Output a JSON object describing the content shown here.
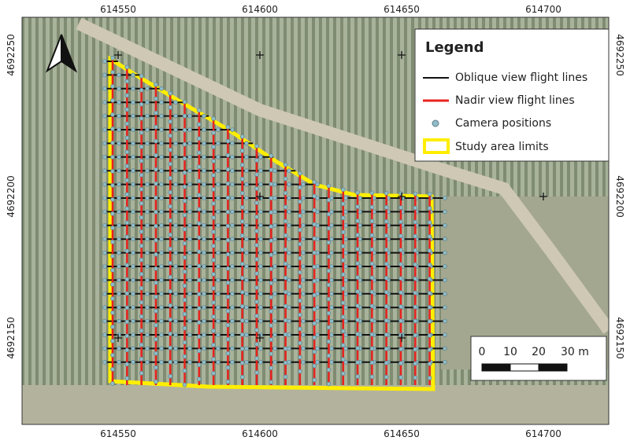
{
  "frame": {
    "top_labels": [
      614550,
      614600,
      614650,
      614700
    ],
    "bottom_labels": [
      614550,
      614600,
      614650,
      614700
    ],
    "left_labels": [
      4692250,
      4692200,
      4692150
    ],
    "right_labels": [
      4692250,
      4692200,
      4692150
    ]
  },
  "legend": {
    "title": "Legend",
    "items": [
      "Oblique view flight lines",
      "Nadir view flight lines",
      "Camera positions",
      "Study area limits"
    ]
  },
  "scale_bar": {
    "labels": [
      "0",
      "10",
      "20",
      "30 m"
    ]
  }
}
